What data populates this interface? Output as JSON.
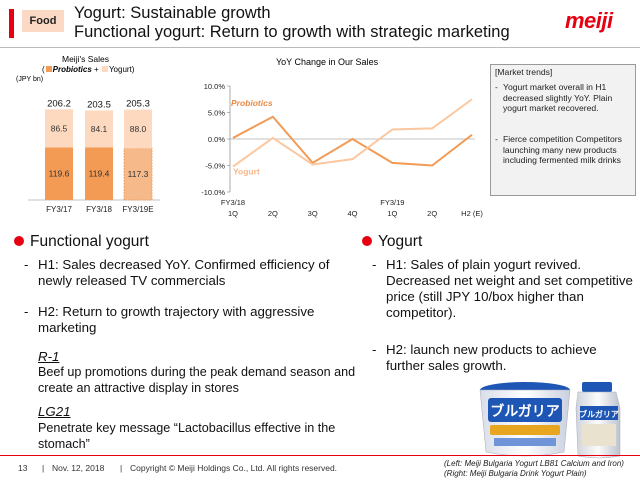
{
  "header": {
    "badge": "Food",
    "title_line1": "Yogurt: Sustainable growth",
    "title_line2": "Functional yogurt: Return to growth with strategic marketing",
    "logo": "meiji",
    "accent": "#e60012"
  },
  "sales_chart": {
    "title": "Meiji's Sales",
    "legend_open": "(",
    "legend_probiotics": "Probiotics",
    "legend_plus": "+",
    "legend_yogurt": "Yogurt",
    "legend_close": ")",
    "unit": "(JPY bn)",
    "chart_data": {
      "type": "bar",
      "stacked": true,
      "categories": [
        "FY3/17",
        "FY3/18",
        "FY3/19E"
      ],
      "totals": [
        "206.2",
        "203.5",
        "205.3"
      ],
      "series": [
        {
          "name": "Probiotics",
          "values": [
            119.6,
            119.4,
            117.3
          ],
          "labels": [
            "119.6",
            "119.4",
            "117.3"
          ],
          "color": "#f39a55"
        },
        {
          "name": "Yogurt",
          "values": [
            86.5,
            84.1,
            88.0
          ],
          "labels": [
            "86.5",
            "84.1",
            "88.0"
          ],
          "color": "#fcd9bf"
        }
      ]
    }
  },
  "yoy_chart": {
    "title": "YoY Change in Our Sales",
    "chart_data": {
      "type": "line",
      "y_ticks": [
        "10.0%",
        "5.0%",
        "0.0%",
        "-5.0%",
        "-10.0%"
      ],
      "ylim": [
        -10,
        10
      ],
      "x_labels": [
        {
          "top": "FY3/18",
          "bottom": "1Q"
        },
        {
          "top": "",
          "bottom": "2Q"
        },
        {
          "top": "",
          "bottom": "3Q"
        },
        {
          "top": "",
          "bottom": "4Q"
        },
        {
          "top": "FY3/19",
          "bottom": "1Q"
        },
        {
          "top": "",
          "bottom": "2Q"
        },
        {
          "top": "",
          "bottom": "H2 (E)"
        }
      ],
      "series": [
        {
          "name": "Probiotics",
          "color": "#f39a55",
          "values": [
            0.2,
            4.2,
            -4.5,
            0.0,
            -4.5,
            -5.0,
            0.8
          ]
        },
        {
          "name": "Yogurt",
          "color": "#fcc79e",
          "values": [
            -5.2,
            0.2,
            -4.8,
            -3.8,
            1.8,
            2.0,
            7.5
          ]
        }
      ]
    }
  },
  "market_trends": {
    "title": "[Market trends]",
    "items": [
      "Yogurt market overall in H1 decreased slightly YoY. Plain yogurt market recovered.",
      "Fierce competition Competitors launching many new products including fermented milk drinks"
    ]
  },
  "functional": {
    "heading": "Functional yogurt",
    "items": [
      "H1: Sales decreased YoY. Confirmed efficiency of newly released TV commercials",
      "H2: Return to growth trajectory with aggressive marketing"
    ],
    "r1_label": "R-1",
    "r1_text": "Beef up promotions during the peak demand season and create an attractive display in stores",
    "lg21_label": "LG21",
    "lg21_text": "Penetrate key message “Lactobacillus effective in the stomach”"
  },
  "yogurt": {
    "heading": "Yogurt",
    "items": [
      "H1: Sales of plain yogurt revived. Decreased net weight and set competitive price (still JPY 10/box higher than competitor).",
      "H2: launch new products to achieve further sales growth."
    ]
  },
  "caption": {
    "line1": "(Left: Meiji Bulgaria Yogurt LB81 Calcium and Iron)",
    "line2": "(Right: Meiji Bulgaria Drink Yogurt Plain)"
  },
  "footer": {
    "page": "13",
    "sep1": "|",
    "date": "Nov. 12, 2018",
    "sep2": "|",
    "copyright": "Copyright © Meiji Holdings Co., Ltd. All rights reserved."
  }
}
